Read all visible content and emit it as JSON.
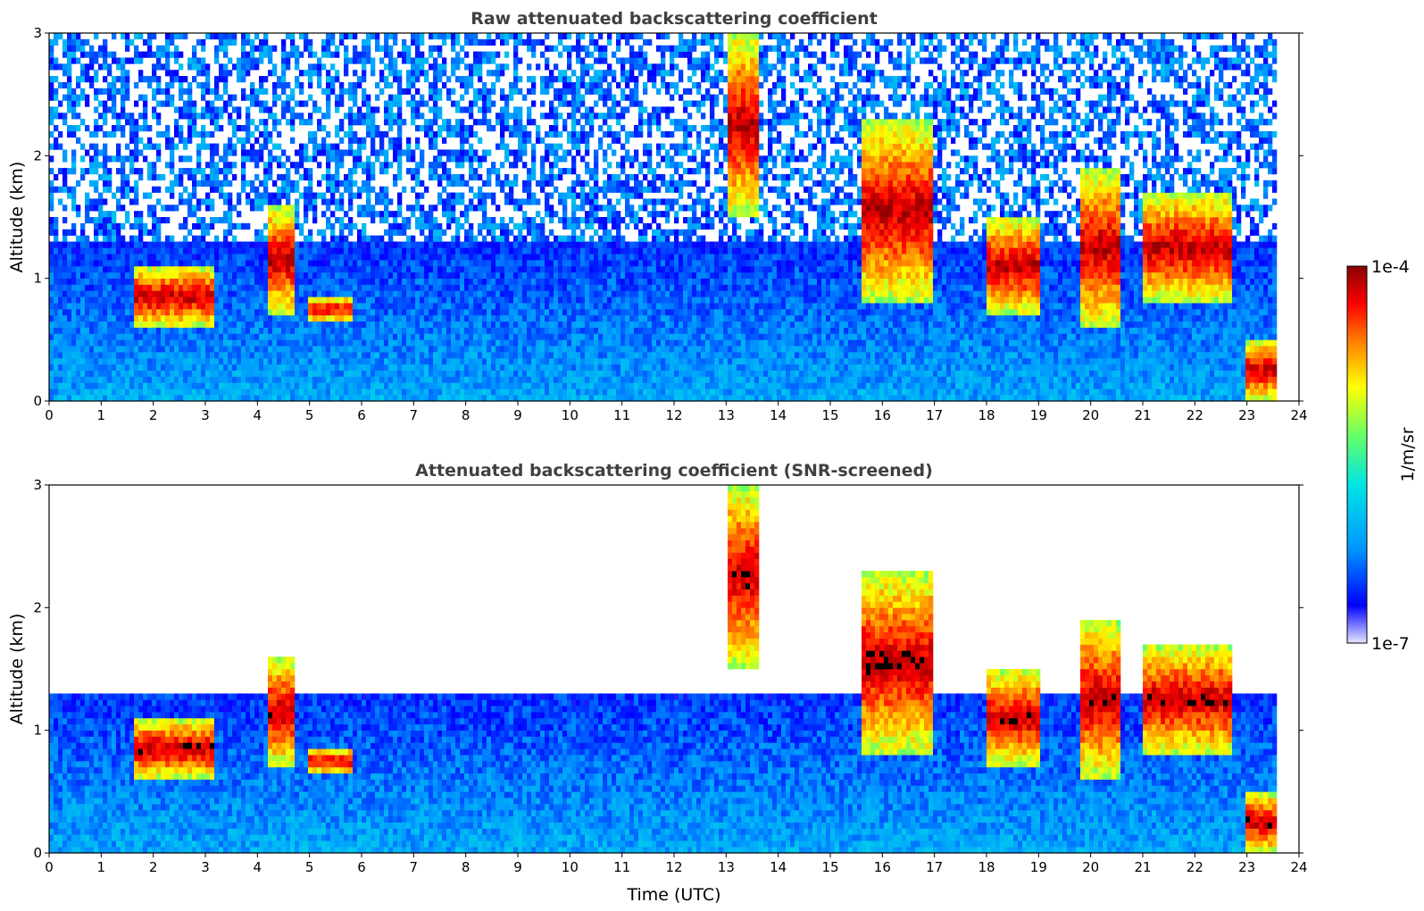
{
  "colors": {
    "colormap": [
      "#e6e6ff",
      "#0000ff",
      "#0096ff",
      "#00e5e5",
      "#66ff66",
      "#ffff00",
      "#ff8000",
      "#ff0000",
      "#8b0000"
    ],
    "screened_overflow": "#000000"
  },
  "chart_data": [
    {
      "type": "heatmap",
      "title": "Raw attenuated backscattering coefficient",
      "xlabel": "",
      "ylabel": "Altitude (km)",
      "xlim": [
        0,
        24
      ],
      "ylim": [
        0,
        3
      ],
      "xticks": [
        "0",
        "1",
        "2",
        "3",
        "4",
        "5",
        "6",
        "7",
        "8",
        "9",
        "10",
        "11",
        "12",
        "13",
        "14",
        "15",
        "16",
        "17",
        "18",
        "19",
        "20",
        "21",
        "22",
        "23",
        "24"
      ],
      "yticks": [
        "0",
        "1",
        "2",
        "3"
      ],
      "cloud_layers": [
        {
          "t0": 1.6,
          "t1": 3.2,
          "base_km": 0.6,
          "top_km": 1.1
        },
        {
          "t0": 4.2,
          "t1": 4.7,
          "base_km": 0.7,
          "top_km": 1.6
        },
        {
          "t0": 5.0,
          "t1": 5.8,
          "base_km": 0.65,
          "top_km": 0.85
        },
        {
          "t0": 13.0,
          "t1": 13.6,
          "base_km": 1.5,
          "top_km": 3.0
        },
        {
          "t0": 15.6,
          "t1": 17.0,
          "base_km": 0.8,
          "top_km": 2.3
        },
        {
          "t0": 18.0,
          "t1": 19.0,
          "base_km": 0.7,
          "top_km": 1.5
        },
        {
          "t0": 19.8,
          "t1": 20.6,
          "base_km": 0.6,
          "top_km": 1.9
        },
        {
          "t0": 21.0,
          "t1": 22.7,
          "base_km": 0.8,
          "top_km": 1.7
        },
        {
          "t0": 23.0,
          "t1": 23.55,
          "base_km": 0.0,
          "top_km": 0.5
        }
      ],
      "boundary_layer_top_km": 1.3,
      "data_end_hour": 23.55
    },
    {
      "type": "heatmap",
      "title": "Attenuated backscattering coefficient (SNR-screened)",
      "xlabel": "Time (UTC)",
      "ylabel": "Altitude (km)",
      "xlim": [
        0,
        24
      ],
      "ylim": [
        0,
        3
      ],
      "xticks": [
        "0",
        "1",
        "2",
        "3",
        "4",
        "5",
        "6",
        "7",
        "8",
        "9",
        "10",
        "11",
        "12",
        "13",
        "14",
        "15",
        "16",
        "17",
        "18",
        "19",
        "20",
        "21",
        "22",
        "23",
        "24"
      ],
      "yticks": [
        "0",
        "1",
        "2",
        "3"
      ],
      "screening_top_km": 1.3,
      "data_end_hour": 23.55
    }
  ],
  "colorbar": {
    "label": "1/m/sr",
    "max_label": "1e-4",
    "min_label": "1e-7",
    "scale": "log"
  }
}
